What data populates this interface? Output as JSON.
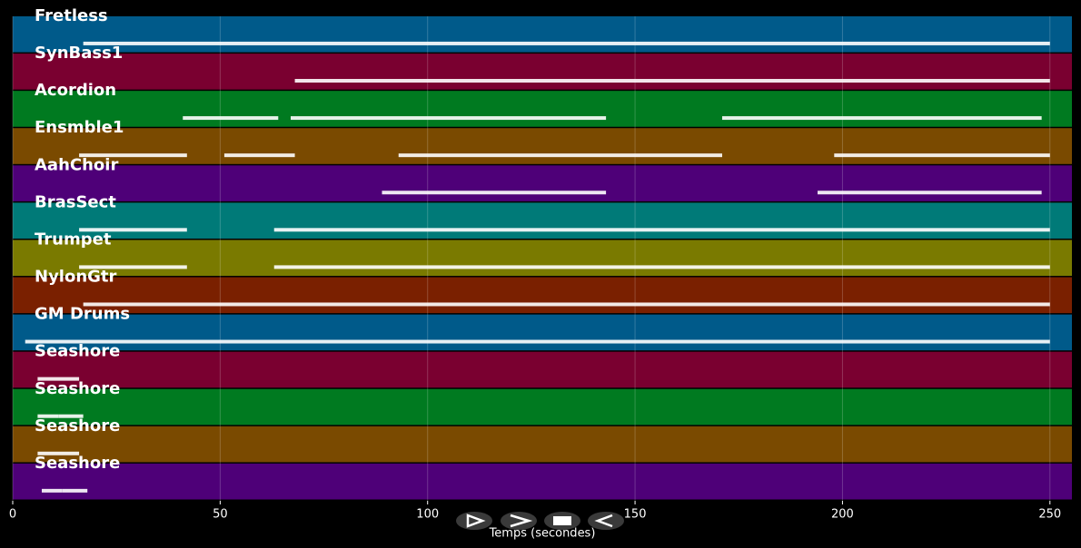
{
  "chart_data": {
    "type": "tracks",
    "xlabel": "Temps (secondes)",
    "xlim": [
      0,
      255.3
    ],
    "xticks": [
      0,
      50,
      100,
      150,
      200,
      250
    ],
    "grid": true,
    "note_color": "#ffffff",
    "series": [
      {
        "name": "Fretless",
        "color": "#005a8a",
        "segments": [
          [
            17,
            250
          ]
        ]
      },
      {
        "name": "SynBass1",
        "color": "#7a0030",
        "segments": [
          [
            68,
            250
          ]
        ]
      },
      {
        "name": "Acordion",
        "color": "#007a20",
        "segments": [
          [
            41,
            64
          ],
          [
            67,
            143
          ],
          [
            171,
            248
          ]
        ]
      },
      {
        "name": "Ensmble1",
        "color": "#7a4a00",
        "segments": [
          [
            16,
            42
          ],
          [
            51,
            68
          ],
          [
            93,
            171
          ],
          [
            198,
            250
          ]
        ]
      },
      {
        "name": "AahChoir",
        "color": "#4e0078",
        "segments": [
          [
            89,
            143
          ],
          [
            194,
            248
          ]
        ]
      },
      {
        "name": "BrasSect",
        "color": "#007a78",
        "segments": [
          [
            16,
            42
          ],
          [
            63,
            250
          ]
        ]
      },
      {
        "name": "Trumpet",
        "color": "#7a7a00",
        "segments": [
          [
            16,
            42
          ],
          [
            63,
            250
          ]
        ]
      },
      {
        "name": "NylonGtr",
        "color": "#7a2000",
        "segments": [
          [
            17,
            250
          ]
        ]
      },
      {
        "name": "GM Drums",
        "color": "#005a8a",
        "segments": [
          [
            3,
            250
          ]
        ]
      },
      {
        "name": "Seashore",
        "color": "#7a0030",
        "segments": [
          [
            6,
            16
          ]
        ]
      },
      {
        "name": "Seashore",
        "color": "#007a20",
        "segments": [
          [
            6,
            11
          ],
          [
            11,
            17
          ]
        ]
      },
      {
        "name": "Seashore",
        "color": "#7a4a00",
        "segments": [
          [
            6,
            16
          ]
        ]
      },
      {
        "name": "Seashore",
        "color": "#4e0078",
        "segments": [
          [
            7,
            12
          ],
          [
            12,
            18
          ]
        ]
      }
    ]
  }
}
